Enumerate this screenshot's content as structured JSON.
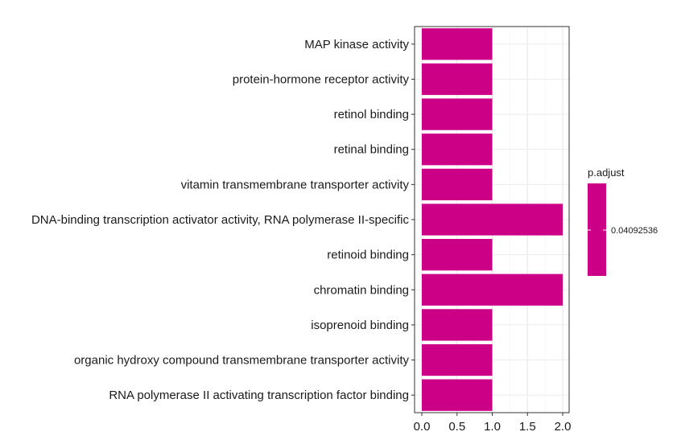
{
  "chart_data": {
    "type": "bar",
    "orientation": "horizontal",
    "categories": [
      "MAP kinase activity",
      "protein-hormone receptor activity",
      "retinol binding",
      "retinal binding",
      "vitamin transmembrane transporter activity",
      "DNA-binding transcription activator activity, RNA polymerase II-specific",
      "retinoid binding",
      "chromatin binding",
      "isoprenoid binding",
      "organic hydroxy compound transmembrane transporter activity",
      "RNA polymerase II activating transcription factor binding"
    ],
    "values": [
      1,
      1,
      1,
      1,
      1,
      2,
      1,
      2,
      1,
      1,
      1
    ],
    "x_ticks": [
      "0.0",
      "0.5",
      "1.0",
      "1.5",
      "2.0"
    ],
    "xlim": [
      0,
      2
    ],
    "grid": true,
    "bar_color": "#cc0087",
    "legend": {
      "title": "p.adjust",
      "value_label": "0.04092536",
      "color": "#cc0087",
      "placement": "right"
    }
  }
}
